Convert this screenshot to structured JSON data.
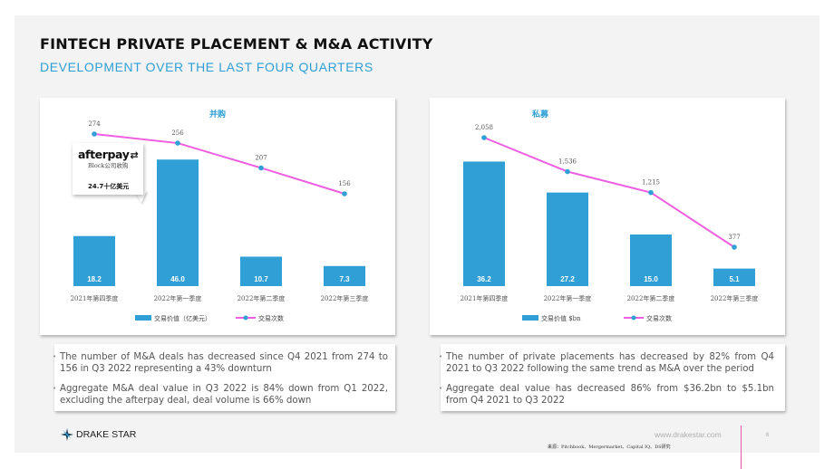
{
  "header": {
    "title": "FINTECH PRIVATE PLACEMENT & M&A ACTIVITY",
    "subtitle": "DEVELOPMENT OVER THE LAST FOUR QUARTERS"
  },
  "colors": {
    "accent": "#2f9fd6",
    "bar": "#2f9fd6",
    "line": "#ee5ee0",
    "marker": "#2f9fd6"
  },
  "chart_data": [
    {
      "type": "bar",
      "title": "并购",
      "categories": [
        "2021年第四季度",
        "2022年第一季度",
        "2022年第二季度",
        "2022年第三季度"
      ],
      "series": [
        {
          "name": "交易价值（亿美元）",
          "type": "bar",
          "values": [
            18.2,
            46.0,
            10.7,
            7.3
          ],
          "labels": [
            "18.2",
            "46.0",
            "10.7",
            "7.3"
          ]
        },
        {
          "name": "交易次数",
          "type": "line",
          "values": [
            274,
            256,
            207,
            156
          ],
          "labels": [
            "274",
            "256",
            "207",
            "156"
          ]
        }
      ],
      "annotation": {
        "logo": "afterpay",
        "note": "Block公司收购",
        "value": "24.7十亿美元"
      }
    },
    {
      "type": "bar",
      "title": "私募",
      "categories": [
        "2021年第四季度",
        "2022年第一季度",
        "2022年第二季度",
        "2022年第三季度"
      ],
      "series": [
        {
          "name": "交易价值 $bn",
          "type": "bar",
          "values": [
            36.2,
            27.2,
            15.0,
            5.1
          ],
          "labels": [
            "36.2",
            "27.2",
            "15.0",
            "5.1"
          ]
        },
        {
          "name": "交易次数",
          "type": "line",
          "values": [
            2058,
            1536,
            1215,
            377
          ],
          "labels": [
            "2,058",
            "1,536",
            "1,215",
            "377"
          ]
        }
      ]
    }
  ],
  "notes_left": [
    "The number of M&A deals has decreased since Q4 2021 from 274 to 156 in Q3 2022 representing a 43% downturn",
    "Aggregate M&A deal value in Q3 2022 is 84% down from Q1 2022, excluding the afterpay deal, deal volume is 66% down"
  ],
  "notes_right": [
    "The number of private placements has decreased by 82% from Q4 2021 to Q3 2022 following the same trend as M&A over the period",
    "Aggregate deal value has decreased 86% from $36.2bn to $5.1bn from Q4 2021 to Q3 2022"
  ],
  "footer": {
    "logo_text": "DRAKE STAR",
    "website": "www.drakestar.com",
    "page_number": "6",
    "source": "来源：Pitchbook、Mergermarket、Capital IQ、DS研究"
  }
}
